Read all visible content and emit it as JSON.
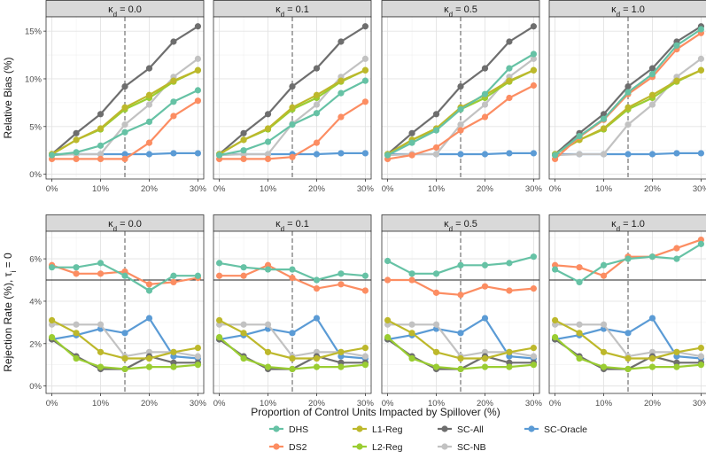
{
  "figure": {
    "x_label": "Proportion of Control Units Impacted by Spillover (%)",
    "legend_title": "",
    "legend_position": "bottom"
  },
  "chart_data": [
    {
      "type": "line",
      "row": "bias",
      "ylabel": "Relative Bias (%)",
      "ylim": [
        -0.5,
        16.5
      ],
      "yticks": [
        0,
        5,
        10,
        15
      ],
      "ytick_labels": [
        "0%",
        "5%",
        "10%",
        "15%"
      ],
      "xlim": [
        -1.2,
        31.2
      ],
      "xticks": [
        0,
        10,
        20,
        30
      ],
      "xtick_labels": [
        "0%",
        "10%",
        "20%",
        "30%"
      ],
      "vline": 15,
      "panels": [
        {
          "label": "κ_d = 0.0",
          "x": [
            0,
            5,
            10,
            15,
            20,
            25,
            30
          ],
          "series": [
            {
              "name": "DHS",
              "values": [
                2.0,
                2.3,
                3.0,
                4.4,
                5.5,
                7.6,
                8.8
              ]
            },
            {
              "name": "DS2",
              "values": [
                1.6,
                1.6,
                1.6,
                1.6,
                3.3,
                6.1,
                7.7
              ]
            },
            {
              "name": "L1-Reg",
              "values": [
                2.1,
                3.6,
                4.8,
                7.0,
                8.3,
                9.8,
                10.9
              ]
            },
            {
              "name": "L2-Reg",
              "values": [
                2.1,
                3.6,
                4.7,
                6.8,
                8.0,
                9.7,
                10.9
              ]
            },
            {
              "name": "SC-All",
              "values": [
                2.1,
                4.3,
                6.3,
                9.2,
                11.1,
                13.9,
                15.5
              ]
            },
            {
              "name": "SC-NB",
              "values": [
                2.0,
                2.1,
                2.1,
                5.2,
                7.3,
                10.2,
                12.1
              ]
            },
            {
              "name": "SC-Oracle",
              "values": [
                2.1,
                2.1,
                2.1,
                2.1,
                2.1,
                2.2,
                2.2
              ]
            }
          ]
        },
        {
          "label": "κ_d = 0.1",
          "x": [
            0,
            5,
            10,
            15,
            20,
            25,
            30
          ],
          "series": [
            {
              "name": "DHS",
              "values": [
                2.0,
                2.5,
                3.4,
                5.2,
                6.4,
                8.5,
                9.8
              ]
            },
            {
              "name": "DS2",
              "values": [
                1.6,
                1.6,
                1.6,
                1.8,
                3.3,
                6.0,
                7.6
              ]
            },
            {
              "name": "L1-Reg",
              "values": [
                2.1,
                3.6,
                4.8,
                7.0,
                8.3,
                9.8,
                10.9
              ]
            },
            {
              "name": "L2-Reg",
              "values": [
                2.1,
                3.6,
                4.7,
                6.8,
                8.0,
                9.7,
                10.9
              ]
            },
            {
              "name": "SC-All",
              "values": [
                2.1,
                4.3,
                6.3,
                9.2,
                11.1,
                13.9,
                15.5
              ]
            },
            {
              "name": "SC-NB",
              "values": [
                2.0,
                2.1,
                2.1,
                5.3,
                7.3,
                10.2,
                12.1
              ]
            },
            {
              "name": "SC-Oracle",
              "values": [
                2.1,
                2.1,
                2.1,
                2.1,
                2.1,
                2.2,
                2.2
              ]
            }
          ]
        },
        {
          "label": "κ_d = 0.5",
          "x": [
            0,
            5,
            10,
            15,
            20,
            25,
            30
          ],
          "series": [
            {
              "name": "DHS",
              "values": [
                2.0,
                3.3,
                4.6,
                6.8,
                8.4,
                11.1,
                12.6
              ]
            },
            {
              "name": "DS2",
              "values": [
                1.6,
                2.0,
                2.8,
                4.6,
                6.0,
                8.0,
                9.3
              ]
            },
            {
              "name": "L1-Reg",
              "values": [
                2.1,
                3.6,
                4.8,
                7.0,
                8.3,
                9.8,
                10.9
              ]
            },
            {
              "name": "L2-Reg",
              "values": [
                2.1,
                3.6,
                4.7,
                6.8,
                8.0,
                9.7,
                10.9
              ]
            },
            {
              "name": "SC-All",
              "values": [
                2.1,
                4.3,
                6.3,
                9.2,
                11.1,
                13.9,
                15.5
              ]
            },
            {
              "name": "SC-NB",
              "values": [
                2.0,
                2.1,
                2.1,
                5.2,
                7.3,
                10.2,
                12.1
              ]
            },
            {
              "name": "SC-Oracle",
              "values": [
                2.1,
                2.1,
                2.1,
                2.1,
                2.1,
                2.2,
                2.2
              ]
            }
          ]
        },
        {
          "label": "κ_d = 1.0",
          "x": [
            0,
            5,
            10,
            15,
            20,
            25,
            30
          ],
          "series": [
            {
              "name": "DHS",
              "values": [
                2.0,
                4.0,
                5.8,
                8.6,
                10.5,
                13.5,
                15.2
              ]
            },
            {
              "name": "DS2",
              "values": [
                1.6,
                3.9,
                5.7,
                8.4,
                10.2,
                13.1,
                14.8
              ]
            },
            {
              "name": "L1-Reg",
              "values": [
                2.1,
                3.6,
                4.8,
                7.0,
                8.3,
                9.8,
                10.9
              ]
            },
            {
              "name": "L2-Reg",
              "values": [
                2.1,
                3.6,
                4.7,
                6.8,
                8.0,
                9.7,
                10.9
              ]
            },
            {
              "name": "SC-All",
              "values": [
                2.1,
                4.3,
                6.3,
                9.2,
                11.1,
                13.9,
                15.5
              ]
            },
            {
              "name": "SC-NB",
              "values": [
                2.0,
                2.1,
                2.1,
                5.2,
                7.3,
                10.2,
                12.1
              ]
            },
            {
              "name": "SC-Oracle",
              "values": [
                2.1,
                2.1,
                2.1,
                2.1,
                2.1,
                2.2,
                2.2
              ]
            }
          ]
        }
      ]
    },
    {
      "type": "line",
      "row": "rejection",
      "ylabel": "Rejection Rate (%), τ_i = 0",
      "ylim": [
        -0.35,
        7.3
      ],
      "yticks": [
        0,
        2,
        4,
        6
      ],
      "ytick_labels": [
        "0%",
        "2%",
        "4%",
        "6%"
      ],
      "xlim": [
        -1.2,
        31.2
      ],
      "xticks": [
        0,
        10,
        20,
        30
      ],
      "xtick_labels": [
        "0%",
        "10%",
        "20%",
        "30%"
      ],
      "vline": 15,
      "hline": 5,
      "panels": [
        {
          "label": "κ_d = 0.0",
          "x": [
            0,
            5,
            10,
            15,
            20,
            25,
            30
          ],
          "series": [
            {
              "name": "DHS",
              "values": [
                5.6,
                5.6,
                5.8,
                5.2,
                4.5,
                5.2,
                5.2
              ]
            },
            {
              "name": "DS2",
              "values": [
                5.7,
                5.3,
                5.3,
                5.4,
                4.8,
                4.9,
                5.1
              ]
            },
            {
              "name": "L1-Reg",
              "values": [
                3.1,
                2.5,
                1.6,
                1.3,
                1.3,
                1.6,
                1.8
              ]
            },
            {
              "name": "L2-Reg",
              "values": [
                2.3,
                1.3,
                0.9,
                0.8,
                0.9,
                0.9,
                1.0
              ]
            },
            {
              "name": "SC-All",
              "values": [
                2.2,
                1.4,
                0.8,
                0.8,
                1.4,
                1.1,
                1.1
              ]
            },
            {
              "name": "SC-NB",
              "values": [
                2.9,
                2.9,
                2.9,
                1.4,
                1.6,
                1.6,
                1.4
              ]
            },
            {
              "name": "SC-Oracle",
              "values": [
                2.2,
                2.4,
                2.7,
                2.5,
                3.2,
                1.4,
                1.3
              ]
            }
          ]
        },
        {
          "label": "κ_d = 0.1",
          "x": [
            0,
            5,
            10,
            15,
            20,
            25,
            30
          ],
          "series": [
            {
              "name": "DHS",
              "values": [
                5.8,
                5.6,
                5.5,
                5.5,
                5.0,
                5.3,
                5.2
              ]
            },
            {
              "name": "DS2",
              "values": [
                5.2,
                5.2,
                5.7,
                5.1,
                4.6,
                4.8,
                4.5
              ]
            },
            {
              "name": "L1-Reg",
              "values": [
                3.1,
                2.5,
                1.6,
                1.3,
                1.3,
                1.6,
                1.8
              ]
            },
            {
              "name": "L2-Reg",
              "values": [
                2.3,
                1.3,
                0.9,
                0.8,
                0.9,
                0.9,
                1.0
              ]
            },
            {
              "name": "SC-All",
              "values": [
                2.2,
                1.4,
                0.8,
                0.8,
                1.4,
                1.1,
                1.1
              ]
            },
            {
              "name": "SC-NB",
              "values": [
                2.9,
                2.9,
                2.9,
                1.4,
                1.6,
                1.6,
                1.4
              ]
            },
            {
              "name": "SC-Oracle",
              "values": [
                2.2,
                2.4,
                2.7,
                2.5,
                3.2,
                1.4,
                1.3
              ]
            }
          ]
        },
        {
          "label": "κ_d = 0.5",
          "x": [
            0,
            5,
            10,
            15,
            20,
            25,
            30
          ],
          "series": [
            {
              "name": "DHS",
              "values": [
                5.9,
                5.3,
                5.3,
                5.7,
                5.7,
                5.8,
                6.1
              ]
            },
            {
              "name": "DS2",
              "values": [
                5.0,
                5.0,
                4.4,
                4.3,
                4.7,
                4.5,
                4.6
              ]
            },
            {
              "name": "L1-Reg",
              "values": [
                3.1,
                2.5,
                1.6,
                1.3,
                1.3,
                1.6,
                1.8
              ]
            },
            {
              "name": "L2-Reg",
              "values": [
                2.3,
                1.3,
                0.9,
                0.8,
                0.9,
                0.9,
                1.0
              ]
            },
            {
              "name": "SC-All",
              "values": [
                2.2,
                1.4,
                0.8,
                0.8,
                1.4,
                1.1,
                1.1
              ]
            },
            {
              "name": "SC-NB",
              "values": [
                2.9,
                2.9,
                2.9,
                1.4,
                1.6,
                1.6,
                1.4
              ]
            },
            {
              "name": "SC-Oracle",
              "values": [
                2.2,
                2.4,
                2.7,
                2.5,
                3.2,
                1.4,
                1.3
              ]
            }
          ]
        },
        {
          "label": "κ_d = 1.0",
          "x": [
            0,
            5,
            10,
            15,
            20,
            25,
            30
          ],
          "series": [
            {
              "name": "DHS",
              "values": [
                5.5,
                4.9,
                5.7,
                6.0,
                6.1,
                6.0,
                6.7
              ]
            },
            {
              "name": "DS2",
              "values": [
                5.7,
                5.6,
                5.2,
                6.1,
                6.1,
                6.5,
                6.9
              ]
            },
            {
              "name": "L1-Reg",
              "values": [
                3.1,
                2.5,
                1.6,
                1.3,
                1.3,
                1.6,
                1.8
              ]
            },
            {
              "name": "L2-Reg",
              "values": [
                2.3,
                1.3,
                0.9,
                0.8,
                0.9,
                0.9,
                1.0
              ]
            },
            {
              "name": "SC-All",
              "values": [
                2.2,
                1.4,
                0.8,
                0.8,
                1.4,
                1.1,
                1.1
              ]
            },
            {
              "name": "SC-NB",
              "values": [
                2.9,
                2.9,
                2.9,
                1.4,
                1.6,
                1.6,
                1.4
              ]
            },
            {
              "name": "SC-Oracle",
              "values": [
                2.2,
                2.4,
                2.7,
                2.5,
                3.2,
                1.4,
                1.3
              ]
            }
          ]
        }
      ]
    }
  ],
  "legend": [
    {
      "name": "DHS",
      "color": "#66c2a5"
    },
    {
      "name": "DS2",
      "color": "#fc8d62"
    },
    {
      "name": "L1-Reg",
      "color": "#bdb82b"
    },
    {
      "name": "L2-Reg",
      "color": "#9acd32"
    },
    {
      "name": "SC-All",
      "color": "#6e6e6e"
    },
    {
      "name": "SC-NB",
      "color": "#c2c2c2"
    },
    {
      "name": "SC-Oracle",
      "color": "#5b9bd5"
    }
  ],
  "series_order": [
    "SC-Oracle",
    "SC-NB",
    "SC-All",
    "L2-Reg",
    "L1-Reg",
    "DS2",
    "DHS"
  ]
}
